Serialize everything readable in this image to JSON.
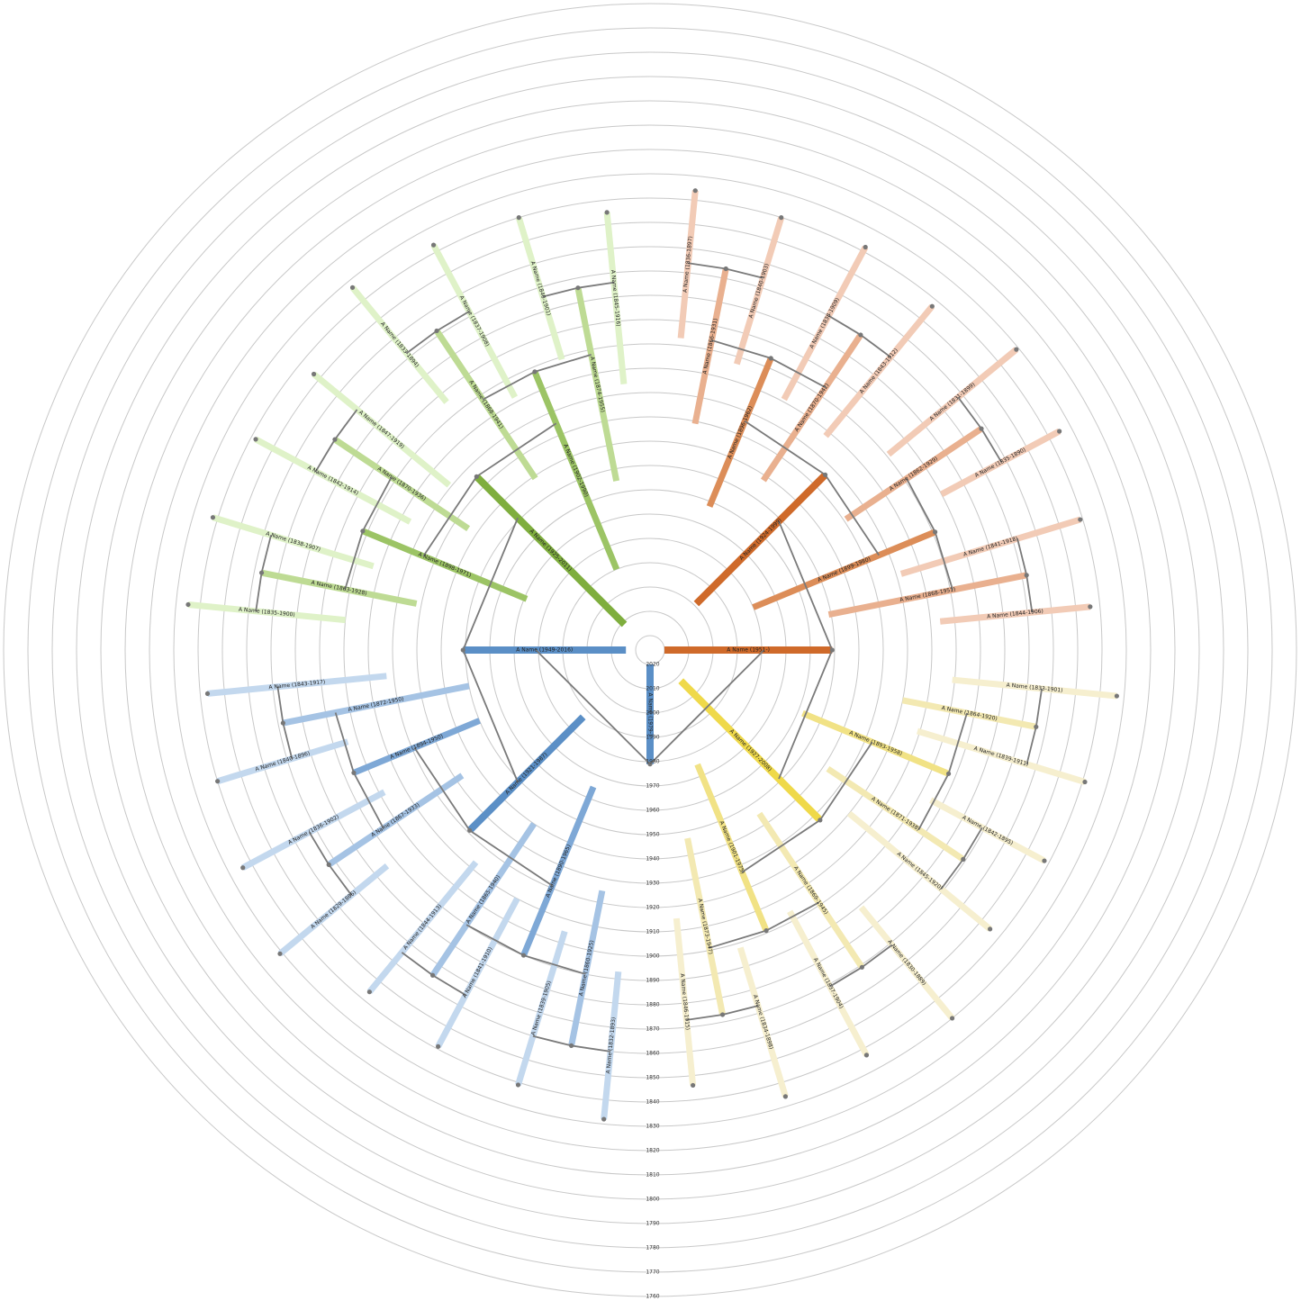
{
  "chart_data": {
    "type": "radial-family-tree",
    "ylim": [
      2020,
      1760
    ],
    "yticks": [
      2020,
      2010,
      2000,
      1990,
      1980,
      1970,
      1960,
      1950,
      1940,
      1930,
      1920,
      1910,
      1900,
      1890,
      1880,
      1870,
      1860,
      1850,
      1840,
      1830,
      1820,
      1810,
      1800,
      1790,
      1780,
      1770,
      1760
    ],
    "grid": true,
    "palette": [
      [
        "#cf6a2a",
        "#dc8d58",
        "#e9b08f",
        "#f2cbb6"
      ],
      [
        "#efd94a",
        "#f1e285",
        "#f3e9b2",
        "#f6efcf"
      ],
      [
        "#5b8fc6",
        "#7ea8d6",
        "#a5c3e4",
        "#c3d8ee"
      ],
      [
        "#7fae3e",
        "#9cc465",
        "#bedb94",
        "#dff2c8"
      ]
    ],
    "people": [
      {
        "label": "A Name (1979-)",
        "birth": 1979,
        "death": null
      },
      {
        "label": "A Name (1951-)",
        "birth": 1951,
        "death": null
      },
      {
        "label": "A Name (1949-2016)",
        "birth": 1949,
        "death": 2016
      },
      {
        "label": "A Name (1924-1999)",
        "birth": 1924,
        "death": 1999
      },
      {
        "label": "A Name (1927-2008)",
        "birth": 1927,
        "death": 2008
      },
      {
        "label": "A Name (1921-1987)",
        "birth": 1921,
        "death": 1987
      },
      {
        "label": "A Name (1925-2011)",
        "birth": 1925,
        "death": 2011
      },
      {
        "label": "A Name (1896-1962)",
        "birth": 1896,
        "death": 1962
      },
      {
        "label": "A Name (1899-1980)",
        "birth": 1899,
        "death": 1980
      },
      {
        "label": "A Name (1893-1958)",
        "birth": 1893,
        "death": 1958
      },
      {
        "label": "A Name (1901-1975)",
        "birth": 1901,
        "death": 1975
      },
      {
        "label": "A Name (1890-1965)",
        "birth": 1890,
        "death": 1965
      },
      {
        "label": "A Name (1894-1950)",
        "birth": 1894,
        "death": 1950
      },
      {
        "label": "A Name (1898-1971)",
        "birth": 1898,
        "death": 1971
      },
      {
        "label": "A Name (1902-1990)",
        "birth": 1902,
        "death": 1990
      },
      {
        "label": "A Name (1866-1931)",
        "birth": 1866,
        "death": 1931
      },
      {
        "label": "A Name (1870-1942)",
        "birth": 1870,
        "death": 1942
      },
      {
        "label": "A Name (1862-1929)",
        "birth": 1862,
        "death": 1929
      },
      {
        "label": "A Name (1868-1951)",
        "birth": 1868,
        "death": 1951
      },
      {
        "label": "A Name (1864-1920)",
        "birth": 1864,
        "death": 1920
      },
      {
        "label": "A Name (1871-1938)",
        "birth": 1871,
        "death": 1938
      },
      {
        "label": "A Name (1869-1945)",
        "birth": 1869,
        "death": 1945
      },
      {
        "label": "A Name (1873-1947)",
        "birth": 1873,
        "death": 1947
      },
      {
        "label": "A Name (1860-1925)",
        "birth": 1860,
        "death": 1925
      },
      {
        "label": "A Name (1865-1940)",
        "birth": 1865,
        "death": 1940
      },
      {
        "label": "A Name (1867-1933)",
        "birth": 1867,
        "death": 1933
      },
      {
        "label": "A Name (1872-1950)",
        "birth": 1872,
        "death": 1950
      },
      {
        "label": "A Name (1863-1928)",
        "birth": 1863,
        "death": 1928
      },
      {
        "label": "A Name (1870-1936)",
        "birth": 1870,
        "death": 1936
      },
      {
        "label": "A Name (1868-1941)",
        "birth": 1868,
        "death": 1941
      },
      {
        "label": "A Name (1874-1955)",
        "birth": 1874,
        "death": 1955
      },
      {
        "label": "A Name (1836-1897)",
        "birth": 1836,
        "death": 1897
      },
      {
        "label": "A Name (1840-1903)",
        "birth": 1840,
        "death": 1903
      },
      {
        "label": "A Name (1838-1909)",
        "birth": 1838,
        "death": 1909
      },
      {
        "label": "A Name (1843-1912)",
        "birth": 1843,
        "death": 1912
      },
      {
        "label": "A Name (1831-1899)",
        "birth": 1831,
        "death": 1899
      },
      {
        "label": "A Name (1835-1890)",
        "birth": 1835,
        "death": 1890
      },
      {
        "label": "A Name (1841-1918)",
        "birth": 1841,
        "death": 1918
      },
      {
        "label": "A Name (1844-1906)",
        "birth": 1844,
        "death": 1906
      },
      {
        "label": "A Name (1833-1901)",
        "birth": 1833,
        "death": 1901
      },
      {
        "label": "A Name (1839-1911)",
        "birth": 1839,
        "death": 1911
      },
      {
        "label": "A Name (1842-1895)",
        "birth": 1842,
        "death": 1895
      },
      {
        "label": "A Name (1845-1920)",
        "birth": 1845,
        "death": 1920
      },
      {
        "label": "A Name (1830-1889)",
        "birth": 1830,
        "death": 1889
      },
      {
        "label": "A Name (1837-1904)",
        "birth": 1837,
        "death": 1904
      },
      {
        "label": "A Name (1834-1898)",
        "birth": 1834,
        "death": 1898
      },
      {
        "label": "A Name (1846-1915)",
        "birth": 1846,
        "death": 1915
      },
      {
        "label": "A Name (1832-1893)",
        "birth": 1832,
        "death": 1893
      },
      {
        "label": "A Name (1839-1905)",
        "birth": 1839,
        "death": 1905
      },
      {
        "label": "A Name (1841-1910)",
        "birth": 1841,
        "death": 1910
      },
      {
        "label": "A Name (1844-1913)",
        "birth": 1844,
        "death": 1913
      },
      {
        "label": "A Name (1829-1886)",
        "birth": 1829,
        "death": 1886
      },
      {
        "label": "A Name (1836-1902)",
        "birth": 1836,
        "death": 1902
      },
      {
        "label": "A Name (1840-1896)",
        "birth": 1840,
        "death": 1896
      },
      {
        "label": "A Name (1843-1917)",
        "birth": 1843,
        "death": 1917
      },
      {
        "label": "A Name (1835-1900)",
        "birth": 1835,
        "death": 1900
      },
      {
        "label": "A Name (1838-1907)",
        "birth": 1838,
        "death": 1907
      },
      {
        "label": "A Name (1842-1914)",
        "birth": 1842,
        "death": 1914
      },
      {
        "label": "A Name (1847-1919)",
        "birth": 1847,
        "death": 1919
      },
      {
        "label": "A Name (1833-1894)",
        "birth": 1833,
        "death": 1894
      },
      {
        "label": "A Name (1837-1908)",
        "birth": 1837,
        "death": 1908
      },
      {
        "label": "A Name (1840-1901)",
        "birth": 1840,
        "death": 1901
      },
      {
        "label": "A Name (1845-1916)",
        "birth": 1845,
        "death": 1916
      }
    ]
  }
}
